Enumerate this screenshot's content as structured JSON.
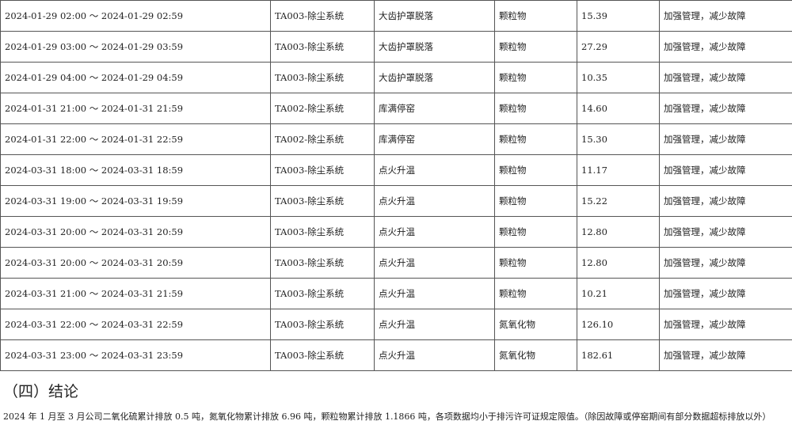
{
  "table": {
    "rows": [
      {
        "time": "2024-01-29 02:00 ～ 2024-01-29 02:59",
        "system": "TA003-除尘系统",
        "reason": "大齿护罩脱落",
        "pollutant": "颗粒物",
        "value": "15.39",
        "measure": "加强管理，减少故障"
      },
      {
        "time": "2024-01-29 03:00 ～ 2024-01-29 03:59",
        "system": "TA003-除尘系统",
        "reason": "大齿护罩脱落",
        "pollutant": "颗粒物",
        "value": "27.29",
        "measure": "加强管理，减少故障"
      },
      {
        "time": "2024-01-29 04:00 ～ 2024-01-29 04:59",
        "system": "TA003-除尘系统",
        "reason": "大齿护罩脱落",
        "pollutant": "颗粒物",
        "value": "10.35",
        "measure": "加强管理，减少故障"
      },
      {
        "time": "2024-01-31 21:00 ～ 2024-01-31 21:59",
        "system": "TA002-除尘系统",
        "reason": "库满停窑",
        "pollutant": "颗粒物",
        "value": "14.60",
        "measure": "加强管理，减少故障"
      },
      {
        "time": "2024-01-31 22:00 ～ 2024-01-31 22:59",
        "system": "TA002-除尘系统",
        "reason": "库满停窑",
        "pollutant": "颗粒物",
        "value": "15.30",
        "measure": "加强管理，减少故障"
      },
      {
        "time": "2024-03-31 18:00 ～ 2024-03-31 18:59",
        "system": "TA003-除尘系统",
        "reason": "点火升温",
        "pollutant": "颗粒物",
        "value": "11.17",
        "measure": "加强管理，减少故障"
      },
      {
        "time": "2024-03-31 19:00 ～ 2024-03-31 19:59",
        "system": "TA003-除尘系统",
        "reason": "点火升温",
        "pollutant": "颗粒物",
        "value": "15.22",
        "measure": "加强管理，减少故障"
      },
      {
        "time": "2024-03-31 20:00 ～ 2024-03-31 20:59",
        "system": "TA003-除尘系统",
        "reason": "点火升温",
        "pollutant": "颗粒物",
        "value": "12.80",
        "measure": "加强管理，减少故障"
      },
      {
        "time": "2024-03-31 20:00 ～ 2024-03-31 20:59",
        "system": "TA003-除尘系统",
        "reason": "点火升温",
        "pollutant": "颗粒物",
        "value": "12.80",
        "measure": "加强管理，减少故障"
      },
      {
        "time": "2024-03-31 21:00 ～ 2024-03-31 21:59",
        "system": "TA003-除尘系统",
        "reason": "点火升温",
        "pollutant": "颗粒物",
        "value": "10.21",
        "measure": "加强管理，减少故障"
      },
      {
        "time": "2024-03-31 22:00 ～ 2024-03-31 22:59",
        "system": "TA003-除尘系统",
        "reason": "点火升温",
        "pollutant": "氮氧化物",
        "value": "126.10",
        "measure": "加强管理，减少故障"
      },
      {
        "time": "2024-03-31 23:00 ～ 2024-03-31 23:59",
        "system": "TA003-除尘系统",
        "reason": "点火升温",
        "pollutant": "氮氧化物",
        "value": "182.61",
        "measure": "加强管理，减少故障"
      }
    ]
  },
  "section": {
    "heading": "（四）结论",
    "body": "2024 年 1 月至 3 月公司二氧化硫累计排放 0.5 吨，氮氧化物累计排放 6.96 吨，颗粒物累计排放 1.1866 吨，各项数据均小于排污许可证规定限值。（除因故障或停窑期间有部分数据超标排放以外）"
  }
}
